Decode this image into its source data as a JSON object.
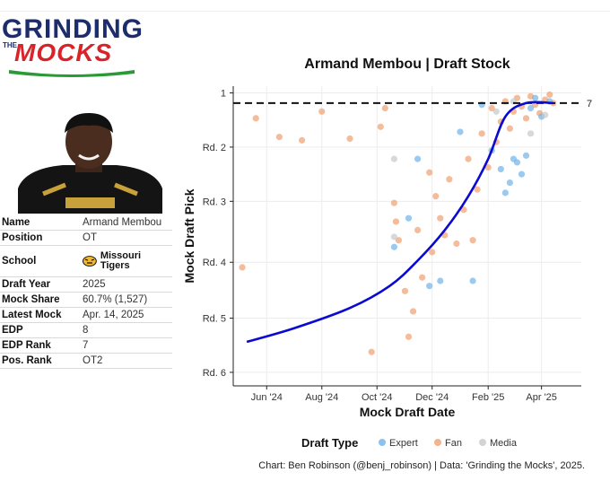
{
  "logo": {
    "line1": "GRINDING",
    "the": "THE",
    "line2": "MOCKS"
  },
  "player": {
    "rows": [
      {
        "key": "Name",
        "value": "Armand Membou"
      },
      {
        "key": "Position",
        "value": "OT"
      },
      {
        "key": "School",
        "value": "Missouri Tigers"
      },
      {
        "key": "Draft Year",
        "value": "2025"
      },
      {
        "key": "Mock Share",
        "value": "60.7% (1,527)"
      },
      {
        "key": "Latest Mock",
        "value": "Apr. 14, 2025"
      },
      {
        "key": "EDP",
        "value": "8"
      },
      {
        "key": "EDP Rank",
        "value": "7"
      },
      {
        "key": "Pos. Rank",
        "value": "OT2"
      }
    ]
  },
  "colors": {
    "expert": "#6fb3ea",
    "fan": "#f0a070",
    "media": "#c8c8c8",
    "trend": "#0a0ad0",
    "logo_blue": "#1d2c6b",
    "logo_red": "#d9232a"
  },
  "chart_data": {
    "type": "scatter",
    "title": "Armand Membou | Draft Stock",
    "xlabel": "Mock Draft Date",
    "ylabel": "Mock Draft Pick",
    "x_ticks": [
      "Jun '24",
      "Aug '24",
      "Oct '24",
      "Dec '24",
      "Feb '25",
      "Apr '25"
    ],
    "y_ticks": [
      "1",
      "Rd. 2",
      "Rd. 3",
      "Rd. 4",
      "Rd. 5",
      "Rd. 6"
    ],
    "y_tick_values": [
      1,
      33,
      65,
      101,
      134,
      166
    ],
    "reference_line": {
      "y": 7,
      "label": "7"
    },
    "legend": {
      "title": "Draft Type",
      "position": "bottom",
      "entries": [
        "Expert",
        "Fan",
        "Media"
      ]
    },
    "grid": true,
    "trend_line": [
      {
        "x": "2024-05-10",
        "y": 148
      },
      {
        "x": "2024-07-01",
        "y": 140
      },
      {
        "x": "2024-09-01",
        "y": 128
      },
      {
        "x": "2024-10-15",
        "y": 115
      },
      {
        "x": "2024-11-15",
        "y": 100
      },
      {
        "x": "2024-12-15",
        "y": 82
      },
      {
        "x": "2025-01-10",
        "y": 62
      },
      {
        "x": "2025-02-01",
        "y": 40
      },
      {
        "x": "2025-02-20",
        "y": 15
      },
      {
        "x": "2025-03-15",
        "y": 7
      },
      {
        "x": "2025-04-14",
        "y": 7
      }
    ],
    "series": [
      {
        "name": "Fan",
        "points": [
          {
            "x": "2024-05-05",
            "y": 104
          },
          {
            "x": "2024-05-20",
            "y": 16
          },
          {
            "x": "2024-06-15",
            "y": 27
          },
          {
            "x": "2024-07-10",
            "y": 29
          },
          {
            "x": "2024-08-01",
            "y": 12
          },
          {
            "x": "2024-09-01",
            "y": 28
          },
          {
            "x": "2024-09-25",
            "y": 154
          },
          {
            "x": "2024-10-05",
            "y": 21
          },
          {
            "x": "2024-10-10",
            "y": 10
          },
          {
            "x": "2024-10-20",
            "y": 66
          },
          {
            "x": "2024-10-22",
            "y": 77
          },
          {
            "x": "2024-10-25",
            "y": 88
          },
          {
            "x": "2024-11-01",
            "y": 118
          },
          {
            "x": "2024-11-05",
            "y": 145
          },
          {
            "x": "2024-11-10",
            "y": 130
          },
          {
            "x": "2024-11-15",
            "y": 82
          },
          {
            "x": "2024-11-20",
            "y": 110
          },
          {
            "x": "2024-11-28",
            "y": 48
          },
          {
            "x": "2024-12-01",
            "y": 95
          },
          {
            "x": "2024-12-05",
            "y": 62
          },
          {
            "x": "2024-12-10",
            "y": 75
          },
          {
            "x": "2024-12-15",
            "y": 85
          },
          {
            "x": "2024-12-20",
            "y": 52
          },
          {
            "x": "2024-12-28",
            "y": 90
          },
          {
            "x": "2025-01-05",
            "y": 70
          },
          {
            "x": "2025-01-10",
            "y": 40
          },
          {
            "x": "2025-01-15",
            "y": 88
          },
          {
            "x": "2025-01-20",
            "y": 58
          },
          {
            "x": "2025-01-25",
            "y": 25
          },
          {
            "x": "2025-02-01",
            "y": 45
          },
          {
            "x": "2025-02-05",
            "y": 10
          },
          {
            "x": "2025-02-10",
            "y": 30
          },
          {
            "x": "2025-02-15",
            "y": 18
          },
          {
            "x": "2025-02-20",
            "y": 6
          },
          {
            "x": "2025-02-25",
            "y": 22
          },
          {
            "x": "2025-03-01",
            "y": 12
          },
          {
            "x": "2025-03-05",
            "y": 4
          },
          {
            "x": "2025-03-10",
            "y": 9
          },
          {
            "x": "2025-03-15",
            "y": 16
          },
          {
            "x": "2025-03-20",
            "y": 3
          },
          {
            "x": "2025-03-25",
            "y": 8
          },
          {
            "x": "2025-03-30",
            "y": 13
          },
          {
            "x": "2025-04-05",
            "y": 5
          },
          {
            "x": "2025-04-10",
            "y": 2
          },
          {
            "x": "2025-04-14",
            "y": 7
          }
        ]
      },
      {
        "name": "Expert",
        "points": [
          {
            "x": "2024-10-20",
            "y": 92
          },
          {
            "x": "2024-11-05",
            "y": 75
          },
          {
            "x": "2024-11-15",
            "y": 40
          },
          {
            "x": "2024-11-28",
            "y": 115
          },
          {
            "x": "2024-12-10",
            "y": 112
          },
          {
            "x": "2025-01-01",
            "y": 24
          },
          {
            "x": "2025-01-15",
            "y": 112
          },
          {
            "x": "2025-01-25",
            "y": 8
          },
          {
            "x": "2025-02-05",
            "y": 35
          },
          {
            "x": "2025-02-15",
            "y": 46
          },
          {
            "x": "2025-02-20",
            "y": 60
          },
          {
            "x": "2025-02-25",
            "y": 54
          },
          {
            "x": "2025-03-01",
            "y": 40
          },
          {
            "x": "2025-03-05",
            "y": 42
          },
          {
            "x": "2025-03-10",
            "y": 49
          },
          {
            "x": "2025-03-15",
            "y": 38
          },
          {
            "x": "2025-03-20",
            "y": 10
          },
          {
            "x": "2025-03-25",
            "y": 4
          },
          {
            "x": "2025-04-01",
            "y": 15
          },
          {
            "x": "2025-04-10",
            "y": 6
          }
        ]
      },
      {
        "name": "Media",
        "points": [
          {
            "x": "2024-10-20",
            "y": 40
          },
          {
            "x": "2024-10-20",
            "y": 86
          },
          {
            "x": "2025-02-10",
            "y": 12
          },
          {
            "x": "2025-03-01",
            "y": 6
          },
          {
            "x": "2025-03-20",
            "y": 25
          },
          {
            "x": "2025-04-05",
            "y": 14
          }
        ]
      }
    ]
  },
  "credit": "Chart: Ben Robinson (@benj_robinson) | Data: 'Grinding the Mocks', 2025."
}
